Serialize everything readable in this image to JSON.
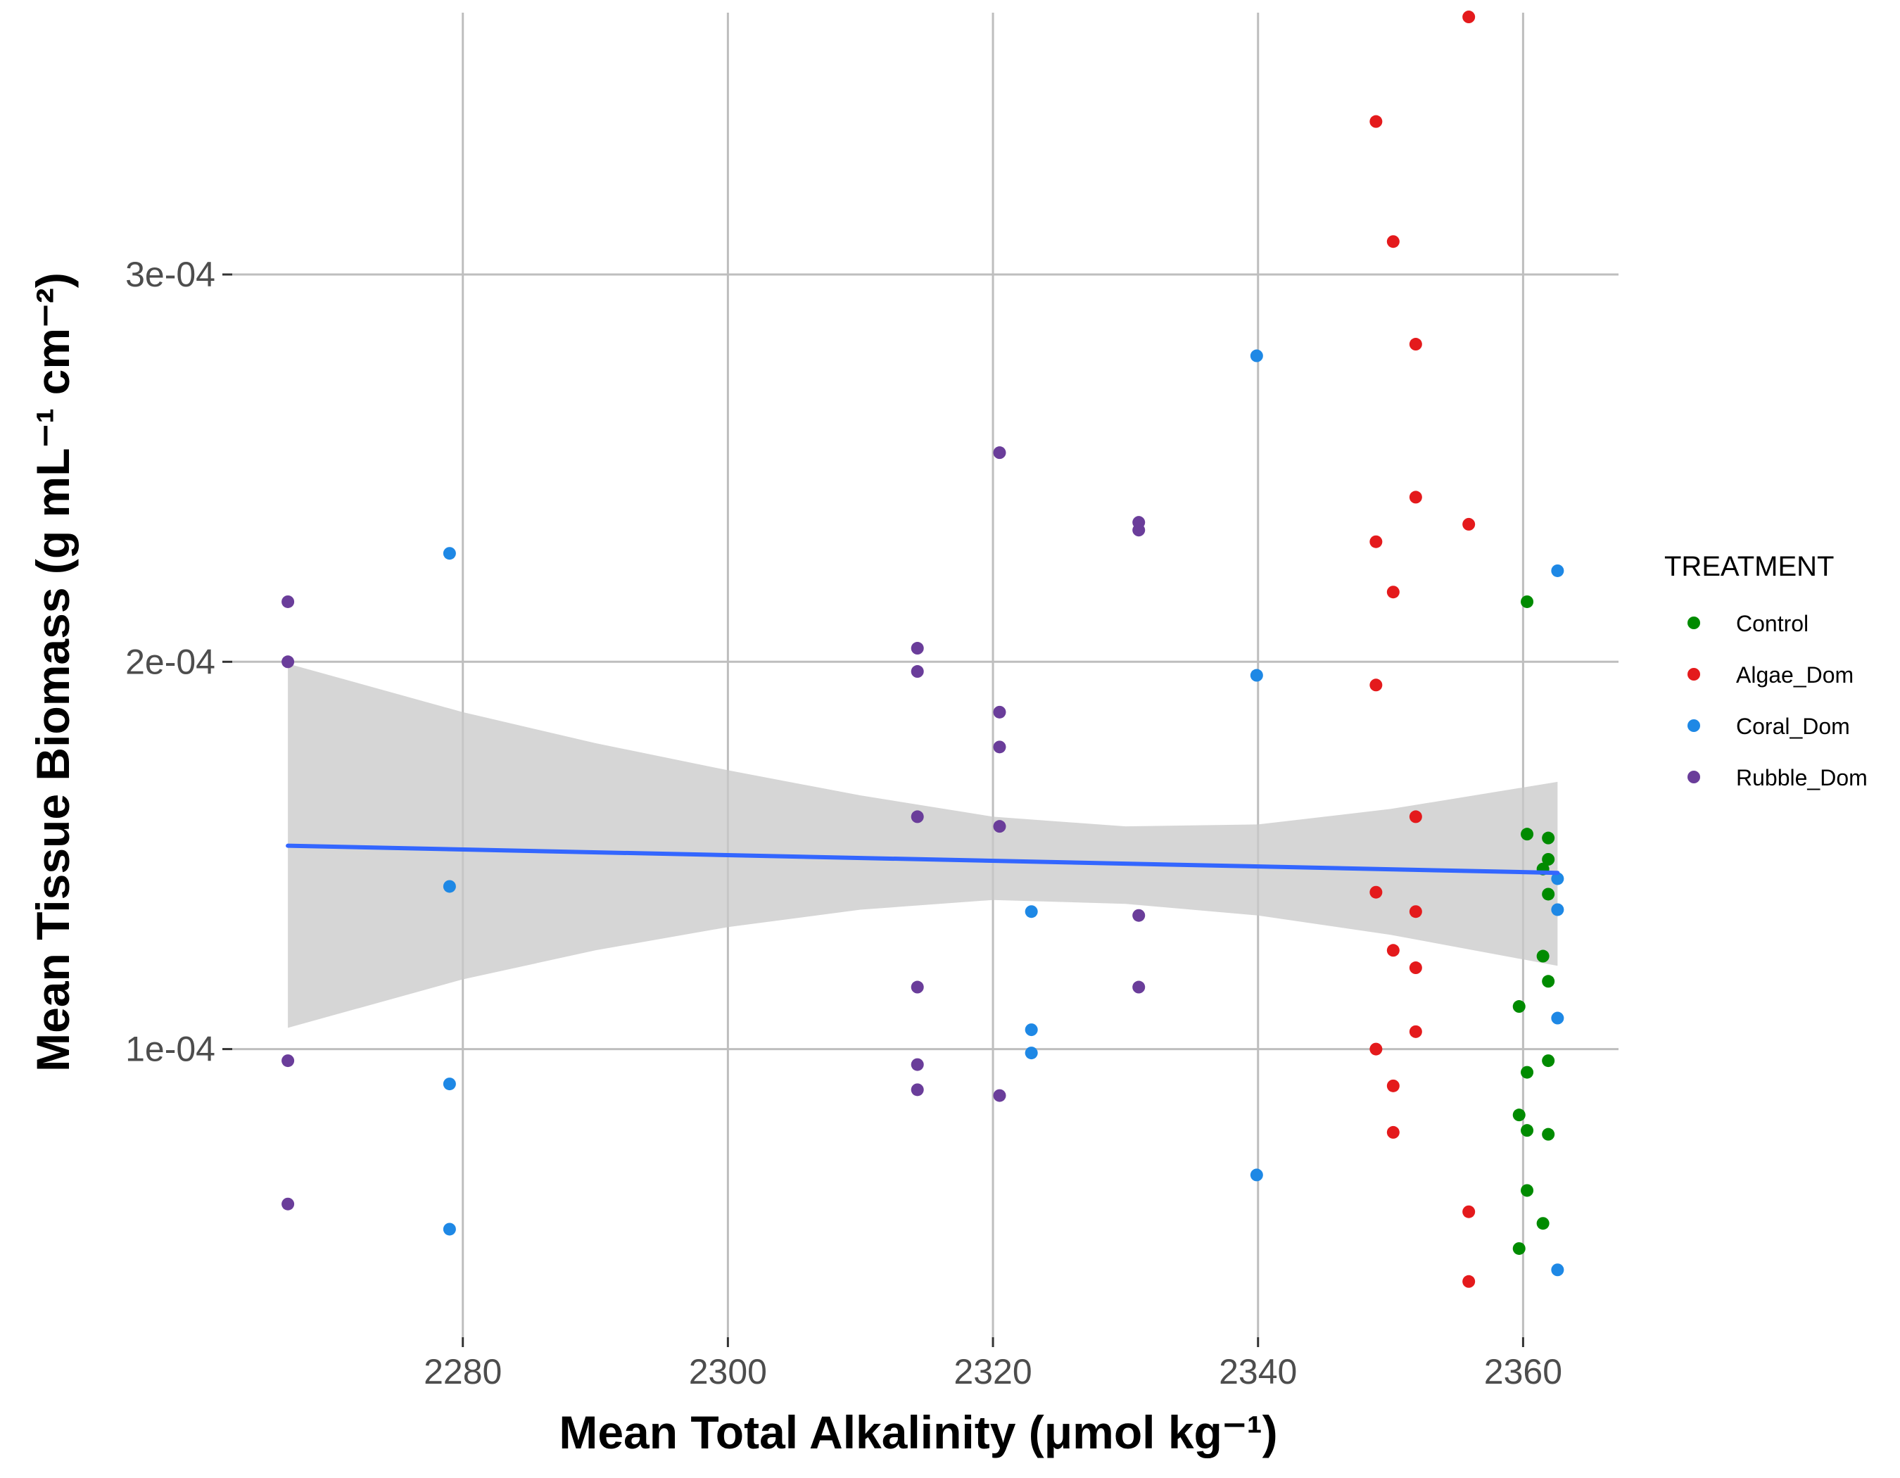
{
  "chart_data": {
    "type": "scatter",
    "xlabel": "Mean Total Alkalinity",
    "xlabel_unit": "(μmol kg⁻¹)",
    "ylabel": "Mean Tissue Biomass",
    "ylabel_unit": "(g mL⁻¹ cm⁻²)",
    "x_ticks": [
      2280,
      2300,
      2320,
      2340,
      2360
    ],
    "x_tick_labels": [
      "2280",
      "2300",
      "2320",
      "2340",
      "2360"
    ],
    "y_ticks": [
      0.0001,
      0.0002,
      0.0003
    ],
    "y_tick_labels": [
      "1e-04",
      "2e-04",
      "3e-04"
    ],
    "xlim": [
      2262.6,
      2367.2
    ],
    "ylim": [
      2.56e-05,
      0.0003676
    ],
    "grid": true,
    "legend": {
      "title": "TREATMENT",
      "placement": "right",
      "entries": [
        "Control",
        "Algae_Dom",
        "Coral_Dom",
        "Rubble_Dom"
      ]
    },
    "series": [
      {
        "name": "Control",
        "color": "#008b00",
        "points": [
          [
            2360.3,
            0.0002155
          ],
          [
            2360.3,
            0.0001555
          ],
          [
            2361.9,
            0.0001545
          ],
          [
            2361.9,
            0.000149
          ],
          [
            2361.5,
            0.0001465
          ],
          [
            2361.9,
            0.00014
          ],
          [
            2361.5,
            0.000124
          ],
          [
            2361.9,
            0.0001175
          ],
          [
            2359.7,
            0.000111
          ],
          [
            2360.3,
            9.4e-05
          ],
          [
            2361.9,
            9.7e-05
          ],
          [
            2359.7,
            8.3e-05
          ],
          [
            2360.3,
            7.9e-05
          ],
          [
            2361.9,
            7.8e-05
          ],
          [
            2360.3,
            6.35e-05
          ],
          [
            2361.5,
            5.5e-05
          ],
          [
            2359.7,
            4.85e-05
          ]
        ]
      },
      {
        "name": "Algae_Dom",
        "color": "#e41a1c",
        "points": [
          [
            2355.9,
            0.0003665
          ],
          [
            2348.9,
            0.0003395
          ],
          [
            2350.2,
            0.0003085
          ],
          [
            2351.9,
            0.000282
          ],
          [
            2351.9,
            0.0002425
          ],
          [
            2355.9,
            0.0002355
          ],
          [
            2348.9,
            0.000231
          ],
          [
            2350.2,
            0.000218
          ],
          [
            2348.9,
            0.000194
          ],
          [
            2351.9,
            0.00016
          ],
          [
            2348.9,
            0.0001405
          ],
          [
            2351.9,
            0.0001355
          ],
          [
            2350.2,
            0.0001255
          ],
          [
            2351.9,
            0.000121
          ],
          [
            2351.9,
            0.0001045
          ],
          [
            2348.9,
            0.0001
          ],
          [
            2350.2,
            9.05e-05
          ],
          [
            2350.2,
            7.85e-05
          ],
          [
            2355.9,
            5.8e-05
          ],
          [
            2355.9,
            4e-05
          ]
        ]
      },
      {
        "name": "Coral_Dom",
        "color": "#1e88e5",
        "points": [
          [
            2339.9,
            0.000279
          ],
          [
            2279.0,
            0.000228
          ],
          [
            2362.6,
            0.0002235
          ],
          [
            2339.9,
            0.0001965
          ],
          [
            2362.6,
            0.000144
          ],
          [
            2279.0,
            0.000142
          ],
          [
            2322.9,
            0.0001355
          ],
          [
            2362.6,
            0.000136
          ],
          [
            2362.6,
            0.000108
          ],
          [
            2322.9,
            0.000105
          ],
          [
            2322.9,
            9.9e-05
          ],
          [
            2279.0,
            9.1e-05
          ],
          [
            2339.9,
            6.75e-05
          ],
          [
            2279.0,
            5.35e-05
          ],
          [
            2362.6,
            4.3e-05
          ]
        ]
      },
      {
        "name": "Rubble_Dom",
        "color": "#6a3d9a",
        "points": [
          [
            2320.5,
            0.000254
          ],
          [
            2331.0,
            0.000236
          ],
          [
            2331.0,
            0.000234
          ],
          [
            2266.8,
            0.0002155
          ],
          [
            2314.3,
            0.0002035
          ],
          [
            2266.8,
            0.0002
          ],
          [
            2314.3,
            0.0001975
          ],
          [
            2320.5,
            0.000187
          ],
          [
            2320.5,
            0.000178
          ],
          [
            2314.3,
            0.00016
          ],
          [
            2320.5,
            0.0001575
          ],
          [
            2331.0,
            0.0001345
          ],
          [
            2314.3,
            0.000116
          ],
          [
            2331.0,
            0.000116
          ],
          [
            2266.8,
            9.7e-05
          ],
          [
            2314.3,
            9.6e-05
          ],
          [
            2314.3,
            8.95e-05
          ],
          [
            2320.5,
            8.8e-05
          ],
          [
            2266.8,
            6e-05
          ]
        ]
      }
    ],
    "trend_line": {
      "method": "linear",
      "color": "#3366ff",
      "x_range": [
        2266.8,
        2362.6
      ],
      "y_at_range": [
        0.0001525,
        0.0001455
      ],
      "confidence_band": {
        "fill": "#c8c8c8",
        "x": [
          2266.8,
          2280,
          2290,
          2300,
          2310,
          2320,
          2330,
          2340,
          2350,
          2362.6
        ],
        "lower": [
          0.0001055,
          0.000118,
          0.0001255,
          0.0001315,
          0.000136,
          0.0001385,
          0.0001375,
          0.0001345,
          0.0001295,
          0.0001215
        ],
        "upper": [
          0.0001995,
          0.000187,
          0.000179,
          0.000172,
          0.0001655,
          0.00016,
          0.0001575,
          0.000158,
          0.000162,
          0.000169
        ]
      }
    }
  }
}
